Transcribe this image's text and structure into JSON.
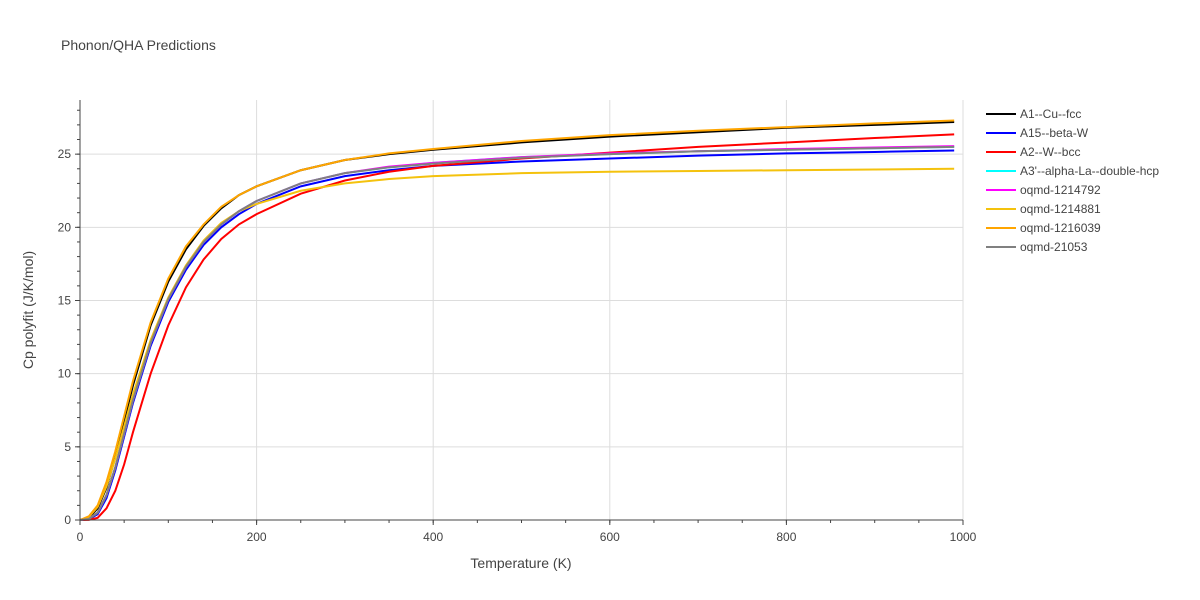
{
  "chart_data": {
    "type": "line",
    "title": "Phonon/QHA Predictions",
    "xlabel": "Temperature (K)",
    "ylabel": "Cp polyfit (J/K/mol)",
    "xlim": [
      0,
      1000
    ],
    "ylim": [
      0,
      28.7
    ],
    "xticks": [
      0,
      200,
      400,
      600,
      800,
      1000
    ],
    "yticks": [
      0,
      5,
      10,
      15,
      20,
      25
    ],
    "grid": true,
    "legend_position": "top-right",
    "series": [
      {
        "name": "A1--Cu--fcc",
        "color": "#000000",
        "x": [
          0,
          10,
          20,
          30,
          40,
          50,
          60,
          80,
          100,
          120,
          140,
          160,
          180,
          200,
          250,
          300,
          350,
          400,
          500,
          600,
          700,
          800,
          900,
          990
        ],
        "y": [
          0,
          0.15,
          0.8,
          2.2,
          4.3,
          6.8,
          9.2,
          13.3,
          16.3,
          18.5,
          20.1,
          21.3,
          22.2,
          22.8,
          23.9,
          24.6,
          25.0,
          25.3,
          25.8,
          26.2,
          26.5,
          26.8,
          27.0,
          27.2
        ]
      },
      {
        "name": "A15--beta-W",
        "color": "#0000ff",
        "x": [
          0,
          10,
          20,
          30,
          40,
          50,
          60,
          80,
          100,
          120,
          140,
          160,
          180,
          200,
          250,
          300,
          350,
          400,
          500,
          600,
          700,
          800,
          900,
          990
        ],
        "y": [
          0,
          0.05,
          0.4,
          1.5,
          3.4,
          5.7,
          8.0,
          11.9,
          14.9,
          17.1,
          18.8,
          20.0,
          20.9,
          21.6,
          22.8,
          23.5,
          23.9,
          24.2,
          24.5,
          24.7,
          24.9,
          25.05,
          25.15,
          25.25
        ]
      },
      {
        "name": "A2--W--bcc",
        "color": "#ff0000",
        "x": [
          0,
          10,
          20,
          30,
          40,
          50,
          60,
          80,
          100,
          120,
          140,
          160,
          180,
          200,
          250,
          300,
          350,
          400,
          500,
          600,
          700,
          800,
          900,
          990
        ],
        "y": [
          0,
          0.01,
          0.15,
          0.8,
          2.0,
          3.8,
          6.0,
          10.0,
          13.3,
          15.9,
          17.8,
          19.2,
          20.2,
          20.9,
          22.3,
          23.2,
          23.8,
          24.2,
          24.7,
          25.1,
          25.5,
          25.8,
          26.1,
          26.35
        ]
      },
      {
        "name": "A3'--alpha-La--double-hcp",
        "color": "#00ffff",
        "x": [
          0,
          10,
          20,
          30,
          40,
          50,
          60,
          80,
          100,
          120,
          140,
          160,
          180,
          200,
          250,
          300,
          350,
          400,
          500,
          600,
          700,
          800,
          900,
          990
        ],
        "y": [
          0,
          0.08,
          0.5,
          1.7,
          3.6,
          5.9,
          8.2,
          12.1,
          15.1,
          17.3,
          19.0,
          20.2,
          21.1,
          21.8,
          23.0,
          23.7,
          24.1,
          24.4,
          24.8,
          25.0,
          25.2,
          25.3,
          25.4,
          25.5
        ]
      },
      {
        "name": "oqmd-1214792",
        "color": "#ff00ff",
        "x": [
          0,
          10,
          20,
          30,
          40,
          50,
          60,
          80,
          100,
          120,
          140,
          160,
          180,
          200,
          250,
          300,
          350,
          400,
          500,
          600,
          700,
          800,
          900,
          990
        ],
        "y": [
          0,
          0.08,
          0.5,
          1.7,
          3.6,
          5.9,
          8.2,
          12.1,
          15.1,
          17.3,
          19.0,
          20.2,
          21.1,
          21.8,
          23.0,
          23.7,
          24.15,
          24.4,
          24.8,
          25.05,
          25.2,
          25.35,
          25.45,
          25.55
        ]
      },
      {
        "name": "oqmd-1214881",
        "color": "#f4c20d",
        "x": [
          0,
          10,
          20,
          30,
          40,
          50,
          60,
          80,
          100,
          120,
          140,
          160,
          180,
          200,
          250,
          300,
          350,
          400,
          500,
          600,
          700,
          800,
          900,
          990
        ],
        "y": [
          0,
          0.2,
          0.9,
          2.3,
          4.2,
          6.4,
          8.6,
          12.3,
          15.2,
          17.4,
          19.1,
          20.3,
          21.1,
          21.6,
          22.5,
          23.0,
          23.3,
          23.5,
          23.7,
          23.8,
          23.85,
          23.9,
          23.95,
          24.0
        ]
      },
      {
        "name": "oqmd-1216039",
        "color": "#ffa500",
        "x": [
          0,
          10,
          20,
          30,
          40,
          50,
          60,
          80,
          100,
          120,
          140,
          160,
          180,
          200,
          250,
          300,
          350,
          400,
          500,
          600,
          700,
          800,
          900,
          990
        ],
        "y": [
          0,
          0.25,
          1.0,
          2.6,
          4.7,
          7.1,
          9.5,
          13.5,
          16.5,
          18.7,
          20.2,
          21.4,
          22.2,
          22.8,
          23.9,
          24.6,
          25.05,
          25.35,
          25.9,
          26.3,
          26.6,
          26.85,
          27.1,
          27.3
        ]
      },
      {
        "name": "oqmd-21053",
        "color": "#808080",
        "x": [
          0,
          10,
          20,
          30,
          40,
          50,
          60,
          80,
          100,
          120,
          140,
          160,
          180,
          200,
          250,
          300,
          350,
          400,
          500,
          600,
          700,
          800,
          900,
          990
        ],
        "y": [
          0,
          0.07,
          0.5,
          1.7,
          3.6,
          5.9,
          8.2,
          12.1,
          15.1,
          17.3,
          19.0,
          20.2,
          21.1,
          21.8,
          23.0,
          23.7,
          24.1,
          24.35,
          24.75,
          25.0,
          25.2,
          25.3,
          25.4,
          25.5
        ]
      }
    ]
  }
}
